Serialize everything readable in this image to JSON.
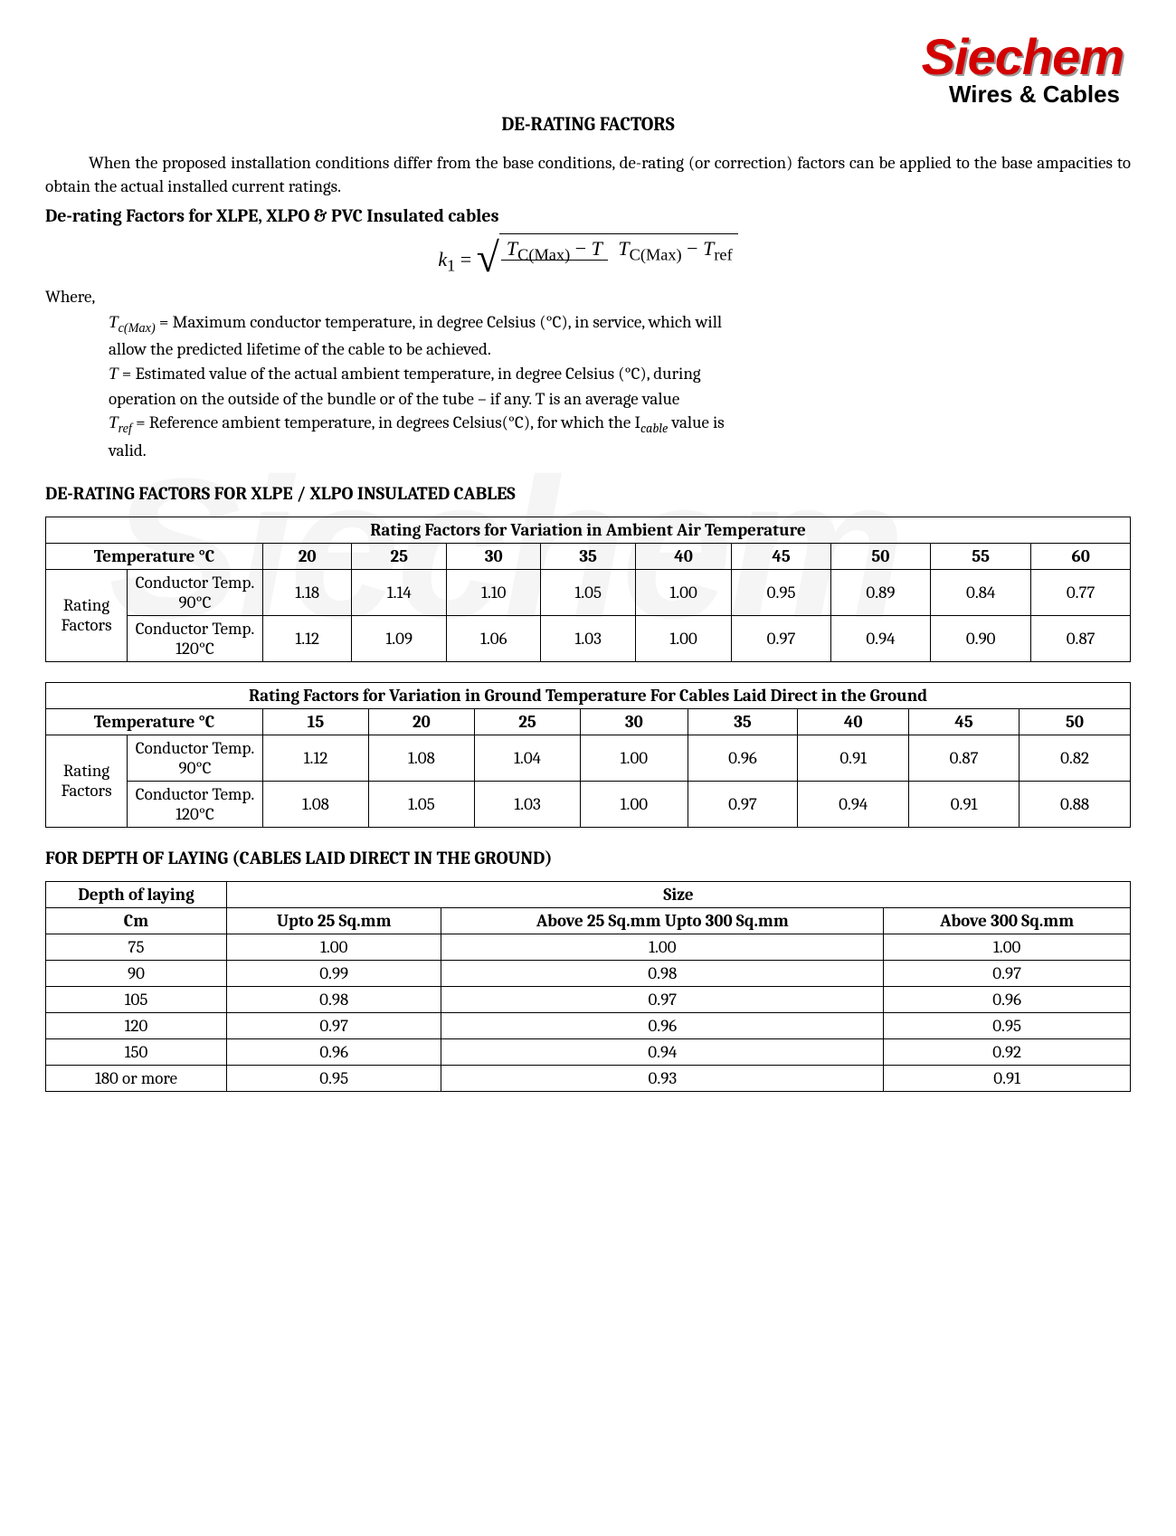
{
  "brand": {
    "name": "Siechem",
    "tagline": "Wires & Cables",
    "brand_color": "#d30000"
  },
  "title": "DE-RATING FACTORS",
  "intro": "When the proposed installation conditions differ from the base conditions, de-rating (or correction) factors can be applied to the base ampacities to obtain the actual installed current ratings.",
  "heading1": "De-rating Factors for XLPE, XLPO & PVC Insulated cables",
  "formula": {
    "lhs": "k",
    "lhs_sub": "1",
    "num_a": "T",
    "num_a_sub": "C(Max)",
    "num_b": "T",
    "den_a": "T",
    "den_a_sub": "C(Max)",
    "den_b": "T",
    "den_b_sub": "ref"
  },
  "where_label": "Where,",
  "defs": {
    "d1_sym": "T",
    "d1_sub": "c(Max)",
    "d1_txt1": " =  Maximum conductor temperature, in degree Celsius (°C), in service, which will",
    "d1_txt2": "allow the predicted lifetime of the cable to be achieved.",
    "d2_sym": "T",
    "d2_txt1": " = Estimated value of the actual ambient temperature, in degree Celsius (°C), during",
    "d2_txt2": "operation on the outside of the bundle or of the tube – if any. T is an average value",
    "d3_sym": "T",
    "d3_sub": "ref",
    "d3_txt1": " = Reference ambient temperature, in degrees Celsius(°C), for which the I",
    "d3_cable": "cable",
    "d3_txt2": " value is",
    "d3_txt3": "valid."
  },
  "section1_title": "DE-RATING FACTORS FOR XLPE / XLPO INSULATED CABLES",
  "table1": {
    "title": "Rating Factors for Variation in Ambient Air Temperature",
    "temp_label": "Temperature °C",
    "temps": [
      "20",
      "25",
      "30",
      "35",
      "40",
      "45",
      "50",
      "55",
      "60"
    ],
    "rf_label": "Rating Factors",
    "row1_label": "Conductor Temp. 90°C",
    "row1": [
      "1.18",
      "1.14",
      "1.10",
      "1.05",
      "1.00",
      "0.95",
      "0.89",
      "0.84",
      "0.77"
    ],
    "row2_label": "Conductor Temp. 120°C",
    "row2": [
      "1.12",
      "1.09",
      "1.06",
      "1.03",
      "1.00",
      "0.97",
      "0.94",
      "0.90",
      "0.87"
    ]
  },
  "table2": {
    "title": "Rating Factors for Variation in Ground Temperature For Cables Laid Direct in the Ground",
    "temp_label": "Temperature °C",
    "temps": [
      "15",
      "20",
      "25",
      "30",
      "35",
      "40",
      "45",
      "50"
    ],
    "rf_label": "Rating Factors",
    "row1_label": "Conductor Temp. 90°C",
    "row1": [
      "1.12",
      "1.08",
      "1.04",
      "1.00",
      "0.96",
      "0.91",
      "0.87",
      "0.82"
    ],
    "row2_label": "Conductor Temp. 120°C",
    "row2": [
      "1.08",
      "1.05",
      "1.03",
      "1.00",
      "0.97",
      "0.94",
      "0.91",
      "0.88"
    ]
  },
  "section2_title": "FOR DEPTH OF LAYING (CABLES LAID DIRECT IN THE GROUND)",
  "table3": {
    "col1_a": "Depth of laying",
    "col1_b": "Cm",
    "size_label": "Size",
    "cols": [
      "Upto 25 Sq.mm",
      "Above 25 Sq.mm Upto 300 Sq.mm",
      "Above 300 Sq.mm"
    ],
    "rows": [
      {
        "d": "75",
        "v": [
          "1.00",
          "1.00",
          "1.00"
        ]
      },
      {
        "d": "90",
        "v": [
          "0.99",
          "0.98",
          "0.97"
        ]
      },
      {
        "d": "105",
        "v": [
          "0.98",
          "0.97",
          "0.96"
        ]
      },
      {
        "d": "120",
        "v": [
          "0.97",
          "0.96",
          "0.95"
        ]
      },
      {
        "d": "150",
        "v": [
          "0.96",
          "0.94",
          "0.92"
        ]
      },
      {
        "d": "180 or more",
        "v": [
          "0.95",
          "0.93",
          "0.91"
        ]
      }
    ]
  }
}
